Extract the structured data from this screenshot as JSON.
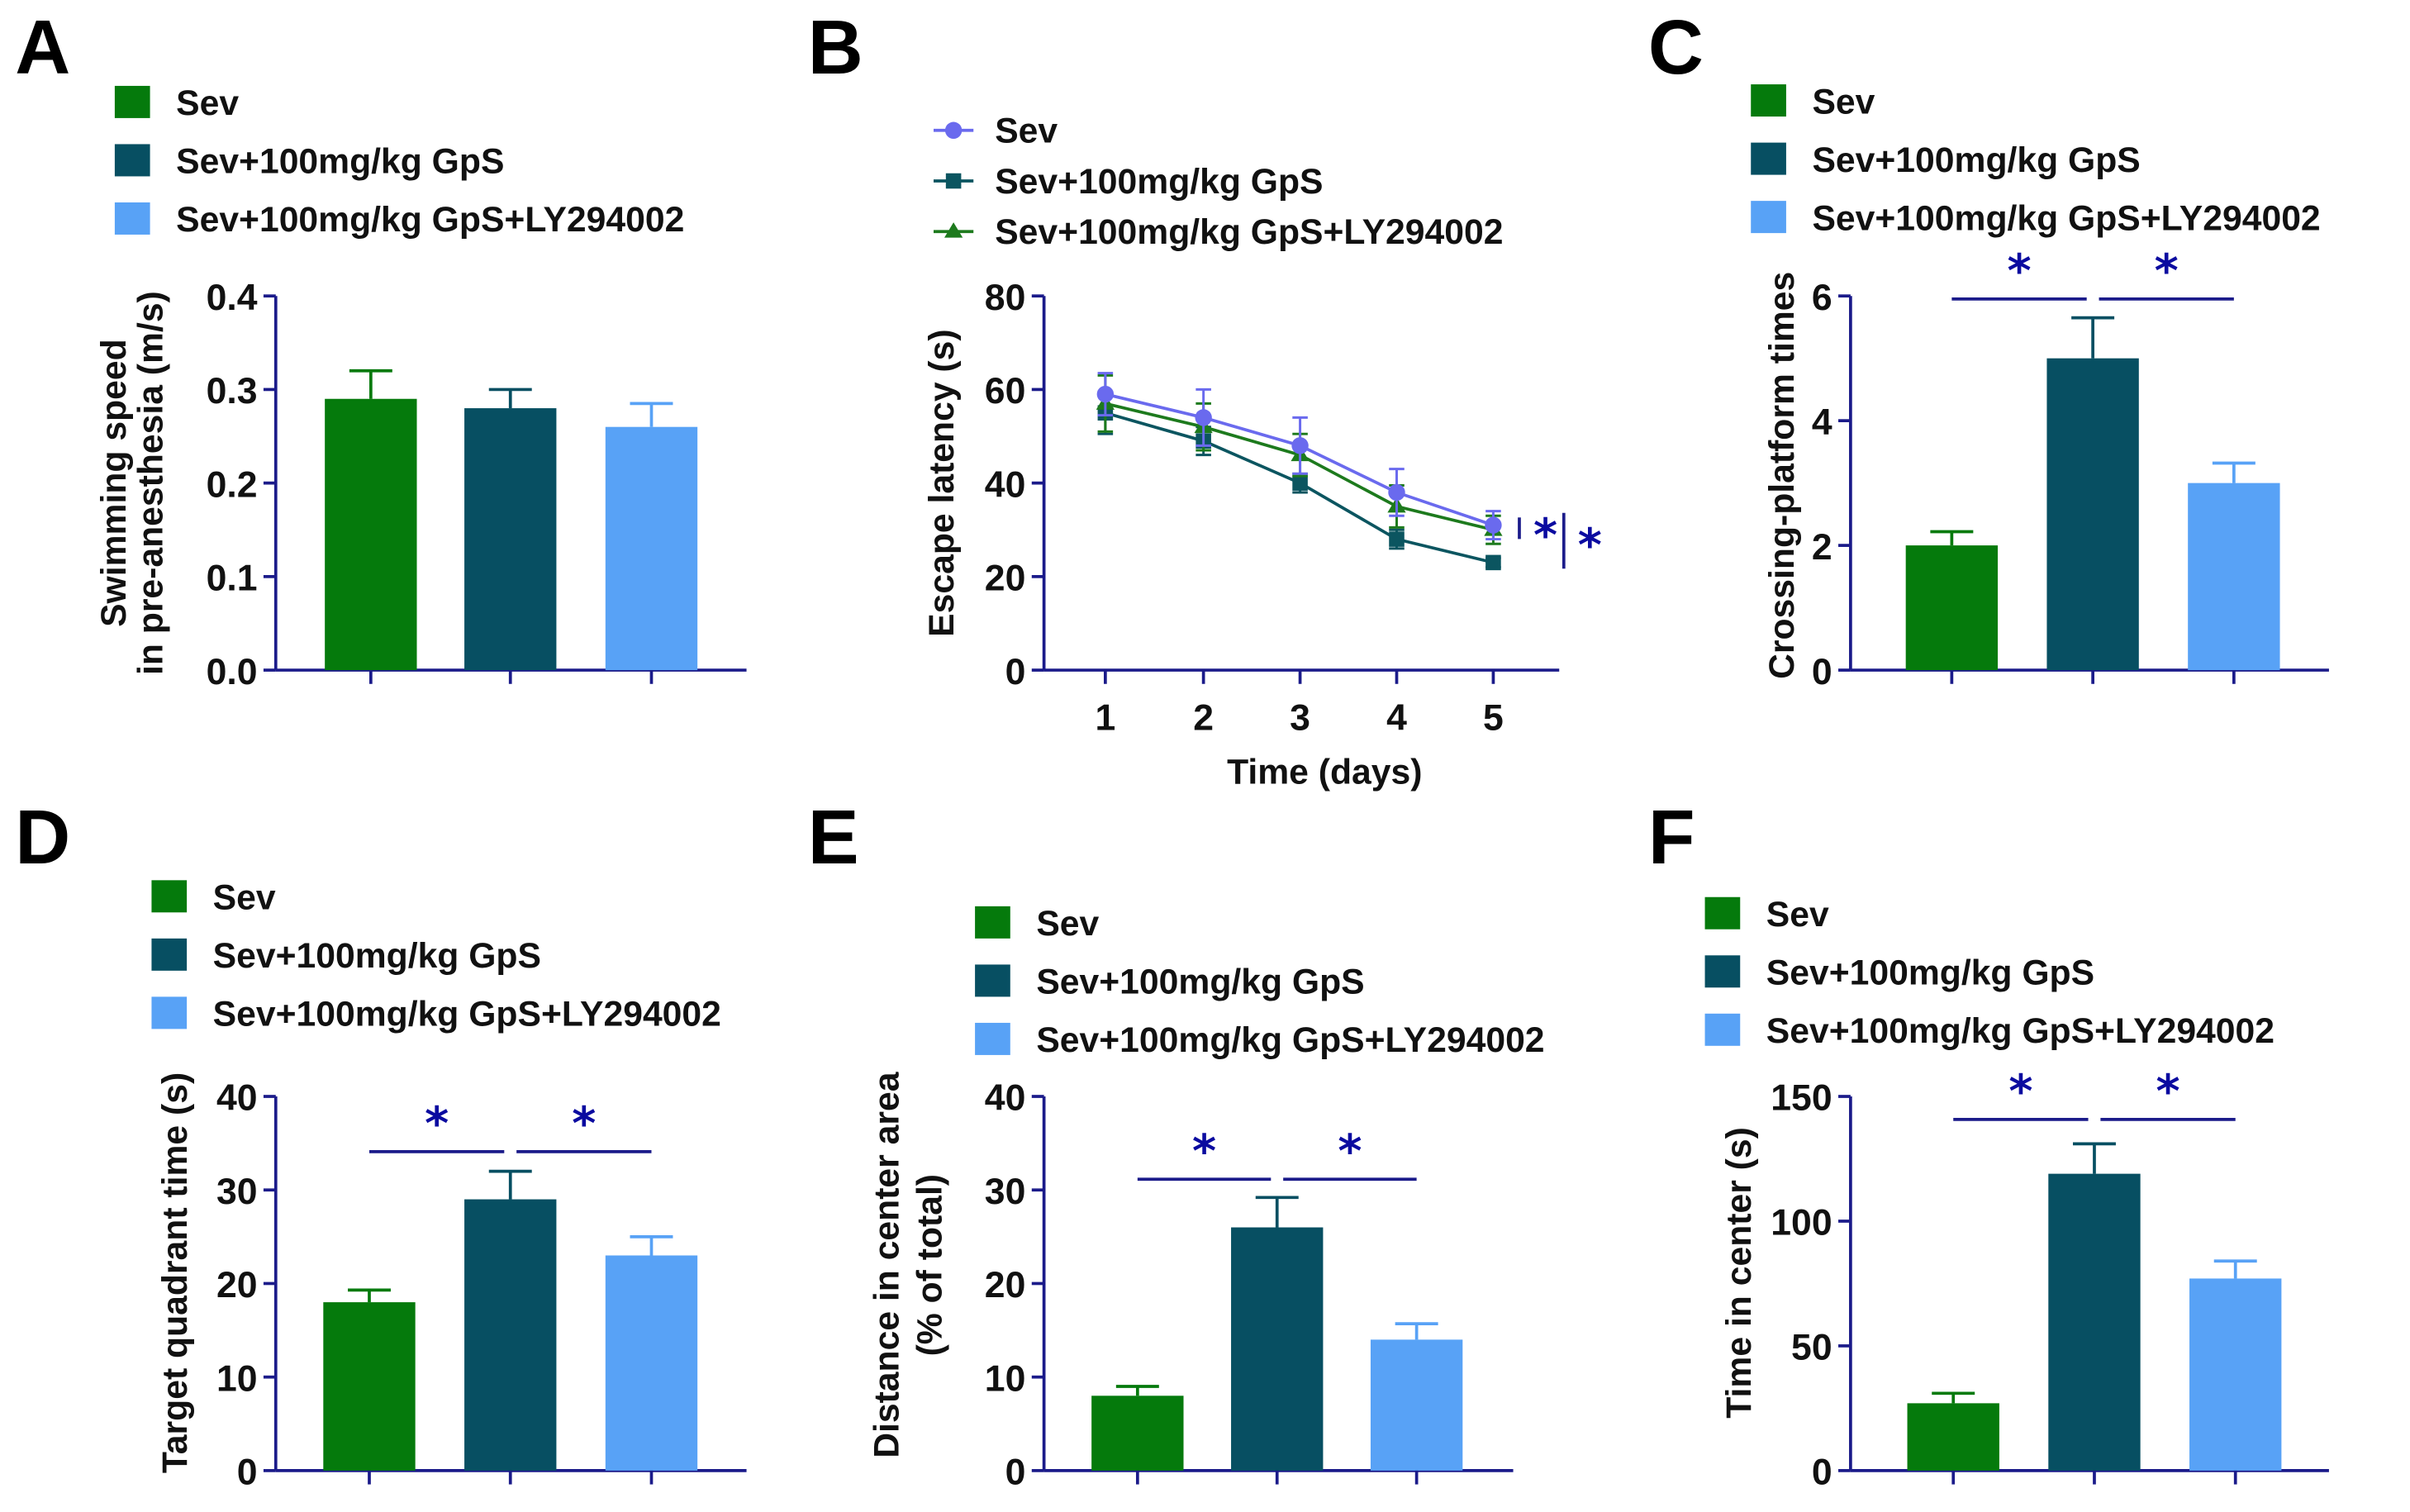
{
  "colors": {
    "sev": "#057a0c",
    "gps": "#074f62",
    "ly": "#58a2f6",
    "line_sev": "#6a6aee",
    "line_gps": "#0b5560",
    "line_ly": "#1d7a1d",
    "axis": "#1b1b8a",
    "significance": "#0b0ba0"
  },
  "groups": [
    "Sev",
    "Sev+100mg/kg GpS",
    "Sev+100mg/kg GpS+LY294002"
  ],
  "chart_data": [
    {
      "panel": "A",
      "type": "bar",
      "title": "",
      "xlabel": "",
      "ylabel": [
        "Swimming speed",
        "in pre-anesthesia (m/s)"
      ],
      "categories": [
        "Sev",
        "Sev+100mg/kg GpS",
        "Sev+100mg/kg GpS+LY294002"
      ],
      "values": [
        0.29,
        0.28,
        0.26
      ],
      "errors": [
        0.03,
        0.02,
        0.025
      ],
      "ylim": [
        0,
        0.4
      ],
      "yticks": [
        "0.0",
        "0.1",
        "0.2",
        "0.3",
        "0.4"
      ],
      "ytick_values": [
        0,
        0.1,
        0.2,
        0.3,
        0.4
      ],
      "legend": [
        "Sev",
        "Sev+100mg/kg GpS",
        "Sev+100mg/kg GpS+LY294002"
      ],
      "legend_position": "top",
      "significance": []
    },
    {
      "panel": "B",
      "type": "line",
      "title": "",
      "xlabel": "Time (days)",
      "ylabel": [
        "Escape latency (s)"
      ],
      "x": [
        1,
        2,
        3,
        4,
        5
      ],
      "xticks": [
        "1",
        "2",
        "3",
        "4",
        "5"
      ],
      "series": [
        {
          "name": "Sev",
          "marker": "circle",
          "values": [
            59,
            54,
            48,
            38,
            31
          ],
          "errors": [
            4.5,
            6,
            6,
            5,
            3
          ]
        },
        {
          "name": "Sev+100mg/kg GpS",
          "marker": "square",
          "values": [
            55,
            49,
            40,
            28,
            23
          ],
          "errors": [
            4.5,
            3,
            2,
            2,
            1
          ]
        },
        {
          "name": "Sev+100mg/kg GpS+LY294002",
          "marker": "triangle",
          "values": [
            57,
            52,
            46,
            35,
            30
          ],
          "errors": [
            6,
            5,
            4.5,
            4.5,
            3
          ]
        }
      ],
      "ylim": [
        0,
        80
      ],
      "yticks": [
        "0",
        "20",
        "40",
        "60",
        "80"
      ],
      "ytick_values": [
        0,
        20,
        40,
        60,
        80
      ],
      "legend_position": "top",
      "significance": [
        "*",
        "*"
      ]
    },
    {
      "panel": "C",
      "type": "bar",
      "title": "",
      "xlabel": "",
      "ylabel": [
        "Crossing-platform times"
      ],
      "categories": [
        "Sev",
        "Sev+100mg/kg GpS",
        "Sev+100mg/kg GpS+LY294002"
      ],
      "values": [
        2.0,
        5.0,
        3.0
      ],
      "errors": [
        0.22,
        0.65,
        0.32
      ],
      "ylim": [
        0,
        6
      ],
      "yticks": [
        "0",
        "2",
        "4",
        "6"
      ],
      "ytick_values": [
        0,
        2,
        4,
        6
      ],
      "legend_position": "top",
      "significance": [
        {
          "from": 0,
          "to": 1,
          "label": "*"
        },
        {
          "from": 1,
          "to": 2,
          "label": "*"
        }
      ]
    },
    {
      "panel": "D",
      "type": "bar",
      "title": "",
      "xlabel": "",
      "ylabel": [
        "Target quadrant time (s)"
      ],
      "categories": [
        "Sev",
        "Sev+100mg/kg GpS",
        "Sev+100mg/kg GpS+LY294002"
      ],
      "values": [
        18,
        29,
        23
      ],
      "errors": [
        1.3,
        3,
        2
      ],
      "ylim": [
        0,
        40
      ],
      "yticks": [
        "0",
        "10",
        "20",
        "30",
        "40"
      ],
      "ytick_values": [
        0,
        10,
        20,
        30,
        40
      ],
      "legend_position": "top",
      "significance": [
        {
          "from": 0,
          "to": 1,
          "label": "*"
        },
        {
          "from": 1,
          "to": 2,
          "label": "*"
        }
      ]
    },
    {
      "panel": "E",
      "type": "bar",
      "title": "",
      "xlabel": "",
      "ylabel": [
        "Distance in center area",
        "(% of total)"
      ],
      "categories": [
        "Sev",
        "Sev+100mg/kg GpS",
        "Sev+100mg/kg GpS+LY294002"
      ],
      "values": [
        8,
        26,
        14
      ],
      "errors": [
        1,
        3.2,
        1.7
      ],
      "ylim": [
        0,
        40
      ],
      "yticks": [
        "0",
        "10",
        "20",
        "30",
        "40"
      ],
      "ytick_values": [
        0,
        10,
        20,
        30,
        40
      ],
      "legend_position": "top",
      "significance": [
        {
          "from": 0,
          "to": 1,
          "label": "*"
        },
        {
          "from": 1,
          "to": 2,
          "label": "*"
        }
      ]
    },
    {
      "panel": "F",
      "type": "bar",
      "title": "",
      "xlabel": "",
      "ylabel": [
        "Time in center (s)"
      ],
      "categories": [
        "Sev",
        "Sev+100mg/kg GpS",
        "Sev+100mg/kg GpS+LY294002"
      ],
      "values": [
        27,
        119,
        77
      ],
      "errors": [
        4,
        12,
        7
      ],
      "ylim": [
        0,
        150
      ],
      "yticks": [
        "0",
        "50",
        "100",
        "150"
      ],
      "ytick_values": [
        0,
        50,
        100,
        150
      ],
      "legend_position": "top",
      "significance": [
        {
          "from": 0,
          "to": 1,
          "label": "*"
        },
        {
          "from": 1,
          "to": 2,
          "label": "*"
        }
      ]
    }
  ]
}
